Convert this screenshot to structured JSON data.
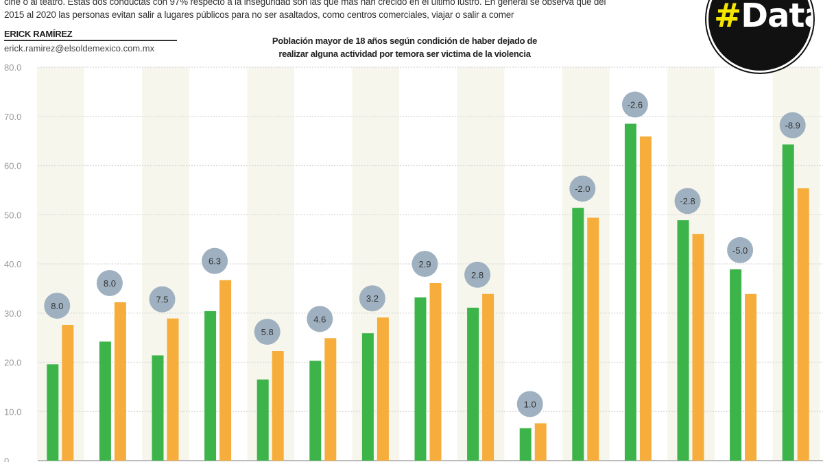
{
  "intro": {
    "line1": "cine o al teatro. Estas dos conductas con 97% respecto a la inseguridad son las que más han crecido en el último lustro. En general se observa que del",
    "line2": "2015 al 2020 las personas evitan salir a lugares públicos para no ser asaltados, como centros comerciales, viajar o salir a comer"
  },
  "author": {
    "name": "ERICK RAMÍREZ",
    "email": "erick.ramirez@elsoldemexico.com.mx"
  },
  "logo": {
    "hash": "#",
    "text": "Data"
  },
  "colors": {
    "series1": "#3cb44a",
    "series2": "#f6ad3b",
    "bubble": "#9fb1c0",
    "stripe": "#f6f6ec"
  },
  "chart_data": {
    "type": "bar",
    "title": "Población mayor de 18 años según condición de haber dejado de realizar alguna actividad por temora ser victima de la violencia",
    "title_line1": "Población mayor de 18 años según condición de haber dejado de",
    "title_line2": "realizar alguna actividad por temora ser victima de la violencia",
    "ylim": [
      0,
      80
    ],
    "yticks": [
      "0",
      "10.0",
      "20.0",
      "30.0",
      "40.0",
      "50.0",
      "60.0",
      "70.0",
      "80.0"
    ],
    "grid": true,
    "series": [
      {
        "color": "#3cb44a",
        "values": [
          19.6,
          24.2,
          21.4,
          30.4,
          16.5,
          20.3,
          25.9,
          33.2,
          31.1,
          6.6,
          51.4,
          68.5,
          48.9,
          38.9,
          64.3
        ]
      },
      {
        "color": "#f6ad3b",
        "values": [
          27.6,
          32.2,
          28.9,
          36.7,
          22.3,
          24.9,
          29.1,
          36.1,
          33.9,
          7.6,
          49.4,
          65.9,
          46.1,
          33.9,
          55.4
        ]
      }
    ],
    "difference_labels": [
      "8.0",
      "8.0",
      "7.5",
      "6.3",
      "5.8",
      "4.6",
      "3.2",
      "2.9",
      "2.8",
      "1.0",
      "-2.0",
      "-2.6",
      "-2.8",
      "-5.0",
      "-8.9"
    ]
  }
}
